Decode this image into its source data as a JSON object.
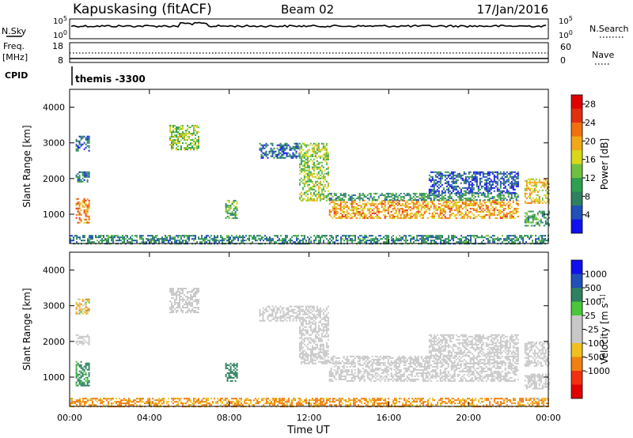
{
  "header": {
    "station": "Kapuskasing (fitACF)",
    "beam": "Beam 02",
    "date": "17/Jan/2016"
  },
  "noise_panel": {
    "left_label": "N.Sky",
    "left_ticks": [
      "10^5",
      "10^0"
    ],
    "right_label": "N.Search",
    "right_ticks": [
      "10^5",
      "10^0"
    ]
  },
  "freq_panel": {
    "left_label_1": "Freq.",
    "left_label_2": "[MHz]",
    "left_ticks": [
      "18",
      "8"
    ],
    "right_label": "Nave",
    "right_ticks": [
      "60",
      "0"
    ]
  },
  "cpid": {
    "label": "CPID",
    "text": "themis -3300"
  },
  "colors": {
    "power_scale": [
      "#1010ee",
      "#2050b8",
      "#2e8060",
      "#2ea050",
      "#70c040",
      "#d8d818",
      "#f0a818",
      "#f07010",
      "#e03010",
      "#e00000"
    ],
    "velocity_scale": [
      "#e00000",
      "#f03010",
      "#f08010",
      "#f0c020",
      "#c8c8c8",
      "#c8c8c8",
      "#48c838",
      "#2e8060",
      "#2050b8",
      "#1010ee"
    ]
  },
  "chart_data": [
    {
      "type": "heatmap",
      "title": "",
      "xlabel": "",
      "ylabel": "Slant Range [km]",
      "x_ticks": [
        "00:00",
        "04:00",
        "08:00",
        "12:00",
        "16:00",
        "20:00",
        "00:00"
      ],
      "x_range_hours": [
        0,
        24
      ],
      "y_ticks": [
        1000,
        2000,
        3000,
        4000
      ],
      "ylim": [
        180,
        4500
      ],
      "colorbar": {
        "label": "Power [dB]",
        "ticks": [
          "4",
          "8",
          "12",
          "16",
          "20",
          "24",
          "28"
        ],
        "range": [
          0,
          30
        ]
      },
      "echo_regions": [
        {
          "t": [
            0.3,
            1.0
          ],
          "range_km": [
            760,
            1450
          ],
          "level": 22
        },
        {
          "t": [
            0.3,
            1.0
          ],
          "range_km": [
            1900,
            2200
          ],
          "level": 7
        },
        {
          "t": [
            0.3,
            1.0
          ],
          "range_km": [
            2800,
            3200
          ],
          "level": 5
        },
        {
          "t": [
            5.0,
            6.5
          ],
          "range_km": [
            2800,
            3500
          ],
          "level": 14
        },
        {
          "t": [
            7.8,
            8.4
          ],
          "range_km": [
            900,
            1400
          ],
          "level": 12
        },
        {
          "t": [
            9.5,
            11.5
          ],
          "range_km": [
            2600,
            3000
          ],
          "level": 6
        },
        {
          "t": [
            11.5,
            13.0
          ],
          "range_km": [
            1400,
            3000
          ],
          "level": 14
        },
        {
          "t": [
            13.0,
            22.5
          ],
          "range_km": [
            900,
            1400
          ],
          "level": 20
        },
        {
          "t": [
            13.0,
            22.5
          ],
          "range_km": [
            1400,
            1600
          ],
          "level": 9
        },
        {
          "t": [
            18.0,
            22.5
          ],
          "range_km": [
            1600,
            2200
          ],
          "level": 5
        },
        {
          "t": [
            22.8,
            24.0
          ],
          "range_km": [
            1300,
            2000
          ],
          "level": 18
        },
        {
          "t": [
            22.8,
            24.0
          ],
          "range_km": [
            700,
            1100
          ],
          "level": 10
        },
        {
          "t": [
            0.0,
            24.0
          ],
          "range_km": [
            180,
            420
          ],
          "level": 8
        }
      ]
    },
    {
      "type": "heatmap",
      "title": "",
      "xlabel": "Time UT",
      "ylabel": "Slant Range [km]",
      "x_ticks": [
        "00:00",
        "04:00",
        "08:00",
        "12:00",
        "16:00",
        "20:00",
        "00:00"
      ],
      "x_range_hours": [
        0,
        24
      ],
      "y_ticks": [
        1000,
        2000,
        3000,
        4000
      ],
      "ylim": [
        180,
        4500
      ],
      "colorbar": {
        "label": "Velocity [m s^-1]",
        "ticks": [
          "1000",
          "500",
          "100",
          "25",
          "-25",
          "-100",
          "-500",
          "-1000"
        ],
        "range": [
          -1000,
          1000
        ]
      },
      "echo_regions": [
        {
          "t": [
            0.3,
            1.0
          ],
          "range_km": [
            760,
            1450
          ],
          "level": 150
        },
        {
          "t": [
            0.3,
            1.0
          ],
          "range_km": [
            1900,
            2200
          ],
          "level": 0
        },
        {
          "t": [
            0.3,
            1.0
          ],
          "range_km": [
            2800,
            3200
          ],
          "level": -50
        },
        {
          "t": [
            5.0,
            6.5
          ],
          "range_km": [
            2800,
            3500
          ],
          "level": 0
        },
        {
          "t": [
            7.8,
            8.4
          ],
          "range_km": [
            900,
            1400
          ],
          "level": 200
        },
        {
          "t": [
            9.5,
            11.5
          ],
          "range_km": [
            2600,
            3000
          ],
          "level": 0
        },
        {
          "t": [
            11.5,
            13.0
          ],
          "range_km": [
            1400,
            3000
          ],
          "level": 0
        },
        {
          "t": [
            13.0,
            22.5
          ],
          "range_km": [
            900,
            1400
          ],
          "level": 0
        },
        {
          "t": [
            13.0,
            22.5
          ],
          "range_km": [
            1400,
            1600
          ],
          "level": 0
        },
        {
          "t": [
            18.0,
            22.5
          ],
          "range_km": [
            1600,
            2200
          ],
          "level": 0
        },
        {
          "t": [
            22.8,
            24.0
          ],
          "range_km": [
            1300,
            2000
          ],
          "level": 0
        },
        {
          "t": [
            22.8,
            24.0
          ],
          "range_km": [
            700,
            1100
          ],
          "level": 0
        },
        {
          "t": [
            0.0,
            24.0
          ],
          "range_km": [
            180,
            420
          ],
          "level": -120
        }
      ]
    }
  ]
}
